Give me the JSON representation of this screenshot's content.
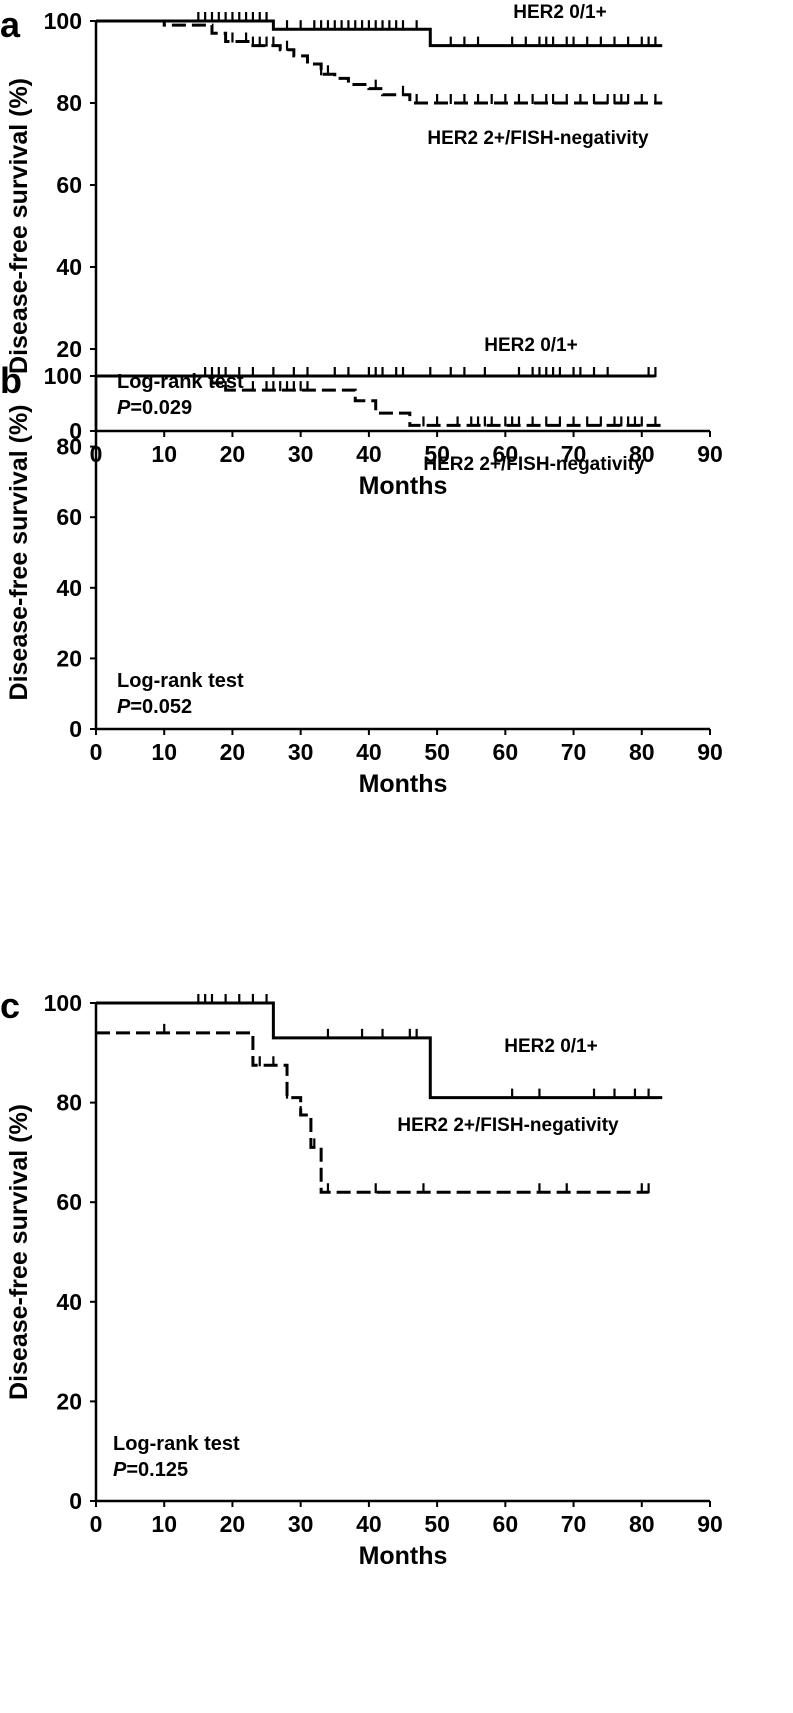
{
  "chart_data": [
    {
      "type": "line",
      "panel_label": "a",
      "xlabel": "Months",
      "ylabel": "Disease-free survival (%)",
      "xlim": [
        0,
        90
      ],
      "ylim": [
        0,
        100
      ],
      "xticks": [
        0,
        10,
        20,
        30,
        40,
        50,
        60,
        70,
        80,
        90
      ],
      "yticks": [
        0,
        20,
        40,
        60,
        80,
        100
      ],
      "grid": false,
      "legend": "none",
      "annotation": {
        "line1": "Log-rank test",
        "p_symbol": "P",
        "p_value": "=0.029"
      },
      "series": [
        {
          "name": "HER2 0/1+",
          "style": "solid",
          "steps": [
            [
              0,
              100
            ],
            [
              26,
              98
            ],
            [
              49,
              94
            ],
            [
              83,
              94
            ]
          ],
          "censored": [
            15,
            16,
            17,
            18,
            19,
            20,
            21,
            22,
            23,
            24,
            25,
            26,
            28,
            30,
            32,
            33,
            34,
            35,
            36,
            37,
            38,
            39,
            40,
            41,
            42,
            43,
            44,
            45,
            47,
            52,
            54,
            56,
            61,
            63,
            65,
            66,
            67,
            69,
            70,
            72,
            74,
            76,
            78,
            80,
            81,
            82
          ]
        },
        {
          "name": "HER2 2+/FISH-negativity",
          "style": "dashed",
          "steps": [
            [
              0,
              100
            ],
            [
              10,
              99
            ],
            [
              17,
              97
            ],
            [
              19,
              95
            ],
            [
              23,
              94
            ],
            [
              27,
              93
            ],
            [
              29,
              91.5
            ],
            [
              31,
              89.5
            ],
            [
              33,
              87
            ],
            [
              35,
              86
            ],
            [
              37,
              84.5
            ],
            [
              40,
              83.5
            ],
            [
              42,
              82
            ],
            [
              46,
              80
            ],
            [
              83,
              80
            ]
          ],
          "censored": [
            20,
            22,
            23,
            24,
            25,
            26,
            28,
            33,
            34,
            41,
            45,
            47,
            50,
            52,
            54,
            56,
            58,
            60,
            62,
            64,
            66,
            67,
            69,
            71,
            73,
            75,
            76,
            77,
            78,
            80,
            82
          ]
        }
      ]
    },
    {
      "type": "line",
      "panel_label": "b",
      "xlabel": "Months",
      "ylabel": "Disease-free survival (%)",
      "xlim": [
        0,
        90
      ],
      "ylim": [
        0,
        100
      ],
      "xticks": [
        0,
        10,
        20,
        30,
        40,
        50,
        60,
        70,
        80,
        90
      ],
      "yticks": [
        0,
        20,
        40,
        60,
        80,
        100
      ],
      "grid": false,
      "legend": "none",
      "annotation": {
        "line1": "Log-rank test",
        "p_symbol": "P",
        "p_value": "=0.052"
      },
      "series": [
        {
          "name": "HER2 0/1+",
          "style": "solid",
          "steps": [
            [
              0,
              100
            ],
            [
              82,
              100
            ]
          ],
          "censored": [
            16,
            17,
            18,
            19,
            21,
            23,
            26,
            29,
            31,
            35,
            37,
            40,
            41,
            42,
            44,
            45,
            49,
            52,
            54,
            57,
            62,
            64,
            65,
            66,
            67,
            68,
            70,
            71,
            73,
            75,
            81,
            82
          ]
        },
        {
          "name": "HER2 2+/FISH-negativity",
          "style": "dashed",
          "steps": [
            [
              0,
              100
            ],
            [
              17,
              98
            ],
            [
              19,
              96
            ],
            [
              38,
              93
            ],
            [
              41,
              89.5
            ],
            [
              46,
              86
            ],
            [
              83,
              86
            ]
          ],
          "censored": [
            17,
            19,
            23,
            25,
            26,
            27,
            28,
            29,
            30,
            31,
            48,
            50,
            53,
            55,
            56,
            57,
            58,
            60,
            61,
            62,
            64,
            66,
            68,
            70,
            72,
            74,
            76,
            77,
            78,
            79,
            80,
            82
          ]
        }
      ]
    },
    {
      "type": "line",
      "panel_label": "c",
      "xlabel": "Months",
      "ylabel": "Disease-free survival (%)",
      "xlim": [
        0,
        90
      ],
      "ylim": [
        0,
        100
      ],
      "xticks": [
        0,
        10,
        20,
        30,
        40,
        50,
        60,
        70,
        80,
        90
      ],
      "yticks": [
        0,
        20,
        40,
        60,
        80,
        100
      ],
      "grid": false,
      "legend": "none",
      "annotation": {
        "line1": "Log-rank test",
        "p_symbol": "P",
        "p_value": "=0.125"
      },
      "series": [
        {
          "name": "HER2 0/1+",
          "style": "solid",
          "steps": [
            [
              0,
              100
            ],
            [
              26,
              93
            ],
            [
              49,
              81
            ],
            [
              83,
              81
            ]
          ],
          "censored": [
            15,
            16,
            17,
            19,
            21,
            23,
            25,
            26,
            34,
            39,
            42,
            46,
            47,
            61,
            65,
            73,
            76,
            79,
            81
          ]
        },
        {
          "name": "HER2 2+/FISH-negativity",
          "style": "dashed",
          "steps": [
            [
              0,
              94
            ],
            [
              23,
              87.5
            ],
            [
              28,
              81
            ],
            [
              30,
              77.5
            ],
            [
              31.5,
              71
            ],
            [
              33,
              62
            ],
            [
              81,
              62
            ]
          ],
          "censored": [
            10,
            23,
            24,
            26,
            28,
            30,
            32,
            34,
            41,
            48,
            65,
            69,
            80,
            81
          ]
        }
      ]
    }
  ]
}
